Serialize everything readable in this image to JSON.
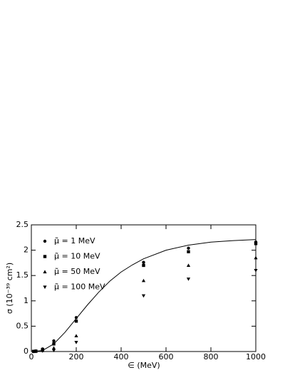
{
  "chart_data": {
    "type": "scatter",
    "xlabel": "∈ (MeV)",
    "ylabel": "σ (10⁻³⁹ cm²)",
    "xlim": [
      0,
      1000
    ],
    "xticks": [
      0,
      200,
      400,
      600,
      800,
      1000
    ],
    "ylim": [
      0,
      2.5
    ],
    "yticks": [
      0,
      0.5,
      1,
      1.5,
      2,
      2.5
    ],
    "x": [
      10,
      20,
      50,
      100,
      200,
      500,
      700,
      1000
    ],
    "series": [
      {
        "name": "μ̃ = 1 MeV",
        "marker": "circle",
        "color": "#000000",
        "values": [
          0.003,
          0.01,
          0.05,
          0.21,
          0.67,
          1.76,
          2.04,
          2.16
        ]
      },
      {
        "name": "μ̃ = 10 MeV",
        "marker": "square",
        "color": "#000000",
        "values": [
          0.002,
          0.008,
          0.04,
          0.15,
          0.6,
          1.7,
          1.97,
          2.13
        ]
      },
      {
        "name": "μ̃ = 50 MeV",
        "marker": "triangle-up",
        "color": "#000000",
        "values": [
          0.001,
          0.004,
          0.02,
          0.07,
          0.31,
          1.4,
          1.7,
          1.85
        ]
      },
      {
        "name": "μ̃ = 100 MeV",
        "marker": "triangle-down",
        "color": "#000000",
        "values": [
          0.0,
          0.002,
          0.01,
          0.02,
          0.18,
          1.1,
          1.43,
          1.6
        ]
      }
    ],
    "curve": {
      "color": "#000000",
      "x": [
        0,
        50,
        100,
        150,
        200,
        250,
        300,
        350,
        400,
        450,
        500,
        600,
        700,
        800,
        900,
        1000
      ],
      "values": [
        0,
        0.02,
        0.15,
        0.38,
        0.65,
        0.92,
        1.17,
        1.39,
        1.57,
        1.71,
        1.83,
        2.0,
        2.1,
        2.16,
        2.19,
        2.21
      ]
    }
  }
}
